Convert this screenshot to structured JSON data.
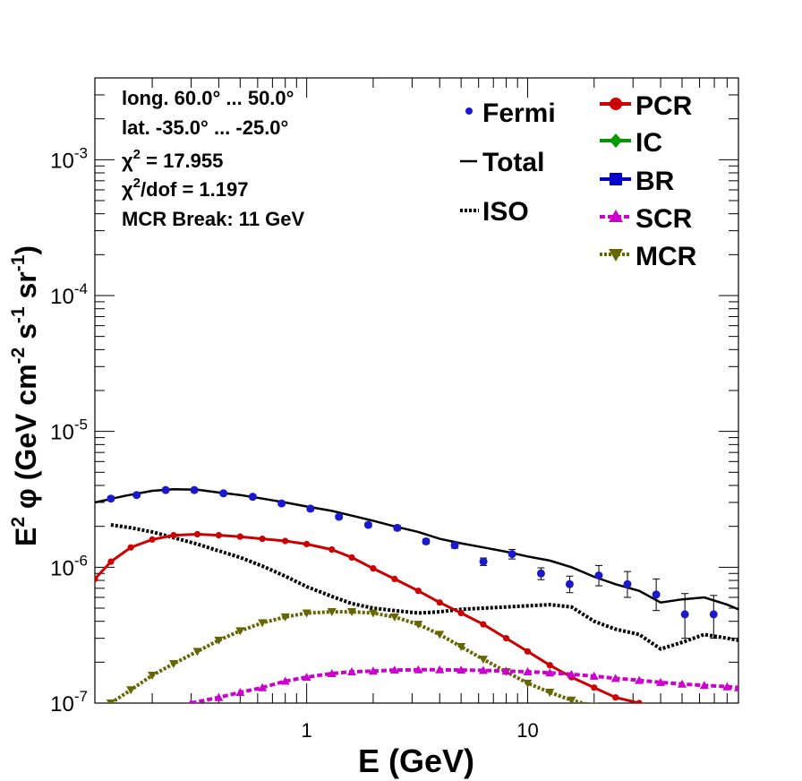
{
  "chart_data": {
    "type": "line",
    "log_x": true,
    "log_y": true,
    "xlabel": "E (GeV)",
    "ylabel": {
      "base": "E",
      "base_sup": "2",
      "mid1": "  φ (GeV cm",
      "sup1": "-2",
      "mid2": " s",
      "sup2": "-1",
      "mid3": " sr",
      "sup3": "-1",
      "end": ")"
    },
    "xlim": [
      0.11,
      90
    ],
    "ylim": [
      1e-07,
      0.004
    ],
    "x_ticks": [
      {
        "v": 1,
        "label": "1"
      },
      {
        "v": 10,
        "label": "10"
      }
    ],
    "y_ticks": [
      {
        "v": 1e-07,
        "base": "10",
        "exp": "-7"
      },
      {
        "v": 1e-06,
        "base": "10",
        "exp": "-6"
      },
      {
        "v": 1e-05,
        "base": "10",
        "exp": "-5"
      },
      {
        "v": 0.0001,
        "base": "10",
        "exp": "-4"
      },
      {
        "v": 0.001,
        "base": "10",
        "exp": "-3"
      }
    ],
    "info_text": [
      {
        "text": "long. 60.0° ... 50.0°"
      },
      {
        "text": "lat. -35.0° ... -25.0°"
      },
      {
        "pre": "χ",
        "sup": "2",
        "post": " = 17.955"
      },
      {
        "pre": "χ",
        "sup": "2",
        "post": "/dof = 1.197"
      },
      {
        "text": "MCR Break: 11 GeV"
      }
    ],
    "legend_left": [
      {
        "name": "Fermi",
        "style": "points",
        "color": "#1a1acc"
      },
      {
        "name": "Total",
        "style": "solid",
        "color": "#000000"
      },
      {
        "name": "ISO",
        "style": "dotted",
        "color": "#000000"
      }
    ],
    "legend_right": [
      {
        "name": "PCR",
        "style": "circle",
        "color": "#cc0000"
      },
      {
        "name": "IC",
        "style": "diamond",
        "color": "#009900"
      },
      {
        "name": "BR",
        "style": "square",
        "color": "#0000cc"
      },
      {
        "name": "SCR",
        "style": "triangle-up",
        "color": "#cc00cc"
      },
      {
        "name": "MCR",
        "style": "triangle-down",
        "color": "#666600"
      }
    ],
    "fermi": {
      "x": [
        0.13,
        0.17,
        0.23,
        0.31,
        0.42,
        0.57,
        0.77,
        1.04,
        1.4,
        1.9,
        2.57,
        3.47,
        4.68,
        6.31,
        8.51,
        11.5,
        15.5,
        21,
        28.3,
        38.2,
        51.5,
        69.5
      ],
      "y": [
        3.2e-06,
        3.4e-06,
        3.7e-06,
        3.7e-06,
        3.5e-06,
        3.3e-06,
        2.95e-06,
        2.7e-06,
        2.35e-06,
        2.05e-06,
        1.95e-06,
        1.55e-06,
        1.45e-06,
        1.1e-06,
        1.25e-06,
        9e-07,
        7.5e-07,
        8.7e-07,
        7.5e-07,
        6.3e-07,
        4.5e-07,
        4.5e-07
      ],
      "err_lo": [
        3.1e-06,
        3.3e-06,
        3.6e-06,
        3.6e-06,
        3.4e-06,
        3.2e-06,
        2.85e-06,
        2.6e-06,
        2.27e-06,
        1.98e-06,
        1.87e-06,
        1.49e-06,
        1.38e-06,
        1.03e-06,
        1.15e-06,
        8.1e-07,
        6.5e-07,
        7.3e-07,
        6e-07,
        4.8e-07,
        3e-07,
        3e-07
      ],
      "err_hi": [
        3.3e-06,
        3.5e-06,
        3.8e-06,
        3.8e-06,
        3.6e-06,
        3.4e-06,
        3.05e-06,
        2.8e-06,
        2.43e-06,
        2.12e-06,
        2.03e-06,
        1.61e-06,
        1.52e-06,
        1.17e-06,
        1.35e-06,
        9.9e-07,
        8.6e-07,
        1.03e-06,
        9.3e-07,
        8.2e-07,
        6.4e-07,
        6.2e-07
      ]
    },
    "series": [
      {
        "name": "Total",
        "style": "solid",
        "color": "#000000",
        "x": [
          0.11,
          0.15,
          0.2,
          0.25,
          0.32,
          0.4,
          0.5,
          0.63,
          0.8,
          1,
          1.3,
          1.6,
          2,
          2.5,
          3.2,
          4,
          5,
          6.3,
          8,
          10,
          12.6,
          15.8,
          20,
          25,
          32,
          40,
          50,
          63,
          80,
          90
        ],
        "y": [
          3e-06,
          3.35e-06,
          3.65e-06,
          3.75e-06,
          3.72e-06,
          3.55e-06,
          3.4e-06,
          3.2e-06,
          3e-06,
          2.8e-06,
          2.6e-06,
          2.4e-06,
          2.2e-06,
          2e-06,
          1.82e-06,
          1.62e-06,
          1.5e-06,
          1.4e-06,
          1.3e-06,
          1.2e-06,
          1.12e-06,
          1e-06,
          8.5e-07,
          7.5e-07,
          6.7e-07,
          5.5e-07,
          5.8e-07,
          6e-07,
          5.3e-07,
          4.9e-07
        ]
      },
      {
        "name": "ISO",
        "style": "dotted",
        "color": "#000000",
        "x": [
          0.13,
          0.16,
          0.2,
          0.25,
          0.32,
          0.4,
          0.5,
          0.63,
          0.8,
          1,
          1.3,
          1.6,
          2,
          2.5,
          3.2,
          4,
          5,
          6.3,
          8,
          10,
          12.6,
          15.8,
          20,
          25,
          32,
          40,
          50,
          63,
          80,
          90
        ],
        "y": [
          2.05e-06,
          1.95e-06,
          1.82e-06,
          1.65e-06,
          1.48e-06,
          1.32e-06,
          1.18e-06,
          1.02e-06,
          8.6e-07,
          7.2e-07,
          6.1e-07,
          5.4e-07,
          5e-07,
          4.8e-07,
          4.6e-07,
          4.7e-07,
          4.9e-07,
          5e-07,
          5.1e-07,
          5.2e-07,
          5.3e-07,
          5.1e-07,
          4e-07,
          3.5e-07,
          3.2e-07,
          2.5e-07,
          2.8e-07,
          3.2e-07,
          3e-07,
          2.9e-07
        ]
      },
      {
        "name": "PCR",
        "style": "circle",
        "color": "#cc0000",
        "x": [
          0.11,
          0.13,
          0.16,
          0.2,
          0.25,
          0.32,
          0.4,
          0.5,
          0.63,
          0.8,
          1,
          1.3,
          1.6,
          2,
          2.5,
          3.2,
          4,
          5,
          6.3,
          8,
          10,
          12.6,
          15.8,
          20,
          25,
          32,
          40
        ],
        "y": [
          8.2e-07,
          1.1e-06,
          1.4e-06,
          1.6e-06,
          1.72e-06,
          1.75e-06,
          1.72e-06,
          1.68e-06,
          1.62e-06,
          1.56e-06,
          1.48e-06,
          1.35e-06,
          1.18e-06,
          9.8e-07,
          8.2e-07,
          6.7e-07,
          5.5e-07,
          4.6e-07,
          3.8e-07,
          3e-07,
          2.4e-07,
          1.9e-07,
          1.55e-07,
          1.3e-07,
          1.1e-07,
          1e-07,
          9e-08
        ]
      },
      {
        "name": "MCR",
        "style": "triangle-down",
        "color": "#666600",
        "x": [
          0.13,
          0.16,
          0.2,
          0.25,
          0.32,
          0.4,
          0.5,
          0.63,
          0.8,
          1,
          1.3,
          1.6,
          2,
          2.5,
          3.2,
          4,
          5,
          6.3,
          8,
          10,
          12.6,
          15.8,
          20
        ],
        "y": [
          1e-07,
          1.25e-07,
          1.6e-07,
          1.95e-07,
          2.4e-07,
          2.9e-07,
          3.4e-07,
          3.9e-07,
          4.3e-07,
          4.6e-07,
          4.7e-07,
          4.7e-07,
          4.6e-07,
          4.3e-07,
          3.8e-07,
          3.2e-07,
          2.6e-07,
          2.1e-07,
          1.7e-07,
          1.4e-07,
          1.2e-07,
          1.05e-07,
          9.5e-08
        ]
      },
      {
        "name": "SCR",
        "style": "triangle-up",
        "color": "#cc00cc",
        "x": [
          0.3,
          0.4,
          0.5,
          0.63,
          0.8,
          1,
          1.3,
          1.6,
          2,
          2.5,
          3.2,
          4,
          5,
          6.3,
          8,
          10,
          12.6,
          15.8,
          20,
          25,
          32,
          40,
          50,
          63,
          80,
          90
        ],
        "y": [
          1e-07,
          1.1e-07,
          1.2e-07,
          1.3e-07,
          1.45e-07,
          1.55e-07,
          1.65e-07,
          1.7e-07,
          1.72e-07,
          1.75e-07,
          1.76e-07,
          1.76e-07,
          1.75e-07,
          1.74e-07,
          1.72e-07,
          1.7e-07,
          1.67e-07,
          1.63e-07,
          1.58e-07,
          1.52e-07,
          1.47e-07,
          1.42e-07,
          1.38e-07,
          1.35e-07,
          1.32e-07,
          1.3e-07
        ]
      }
    ]
  }
}
